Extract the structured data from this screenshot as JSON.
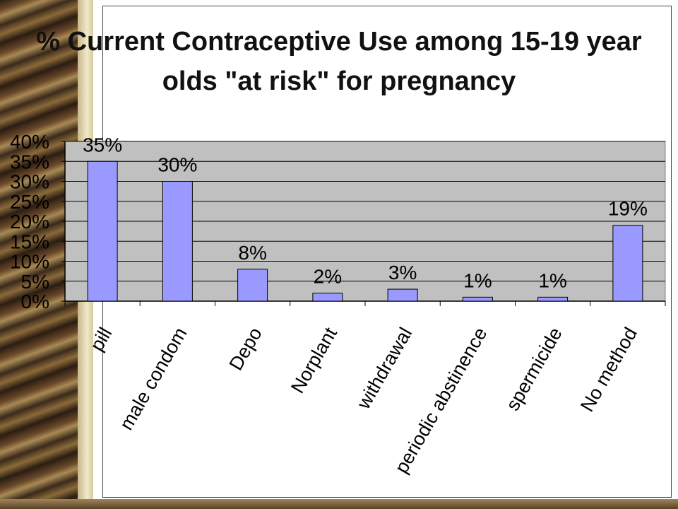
{
  "chart_data": {
    "type": "bar",
    "title": "% Current Contraceptive Use among 15-19 year olds \"at risk\" for pregnancy",
    "title_lines": [
      "% Current Contraceptive Use among 15-19 year",
      "olds \"at risk\" for pregnancy"
    ],
    "categories": [
      "pill",
      "male condom",
      "Depo",
      "Norplant",
      "withdrawal",
      "periodic abstinence",
      "spermicide",
      "No method"
    ],
    "values": [
      35,
      30,
      8,
      2,
      3,
      1,
      1,
      19
    ],
    "data_labels": [
      "35%",
      "30%",
      "8%",
      "2%",
      "3%",
      "1%",
      "1%",
      "19%"
    ],
    "yticks": [
      "0%",
      "5%",
      "10%",
      "15%",
      "20%",
      "25%",
      "30%",
      "35%",
      "40%"
    ],
    "ylim": [
      0,
      40
    ],
    "grid": true,
    "legend": "none",
    "colors": {
      "bar": "#9999ff",
      "plot_bg": "#c0c0c0",
      "grid": "#000000"
    }
  }
}
